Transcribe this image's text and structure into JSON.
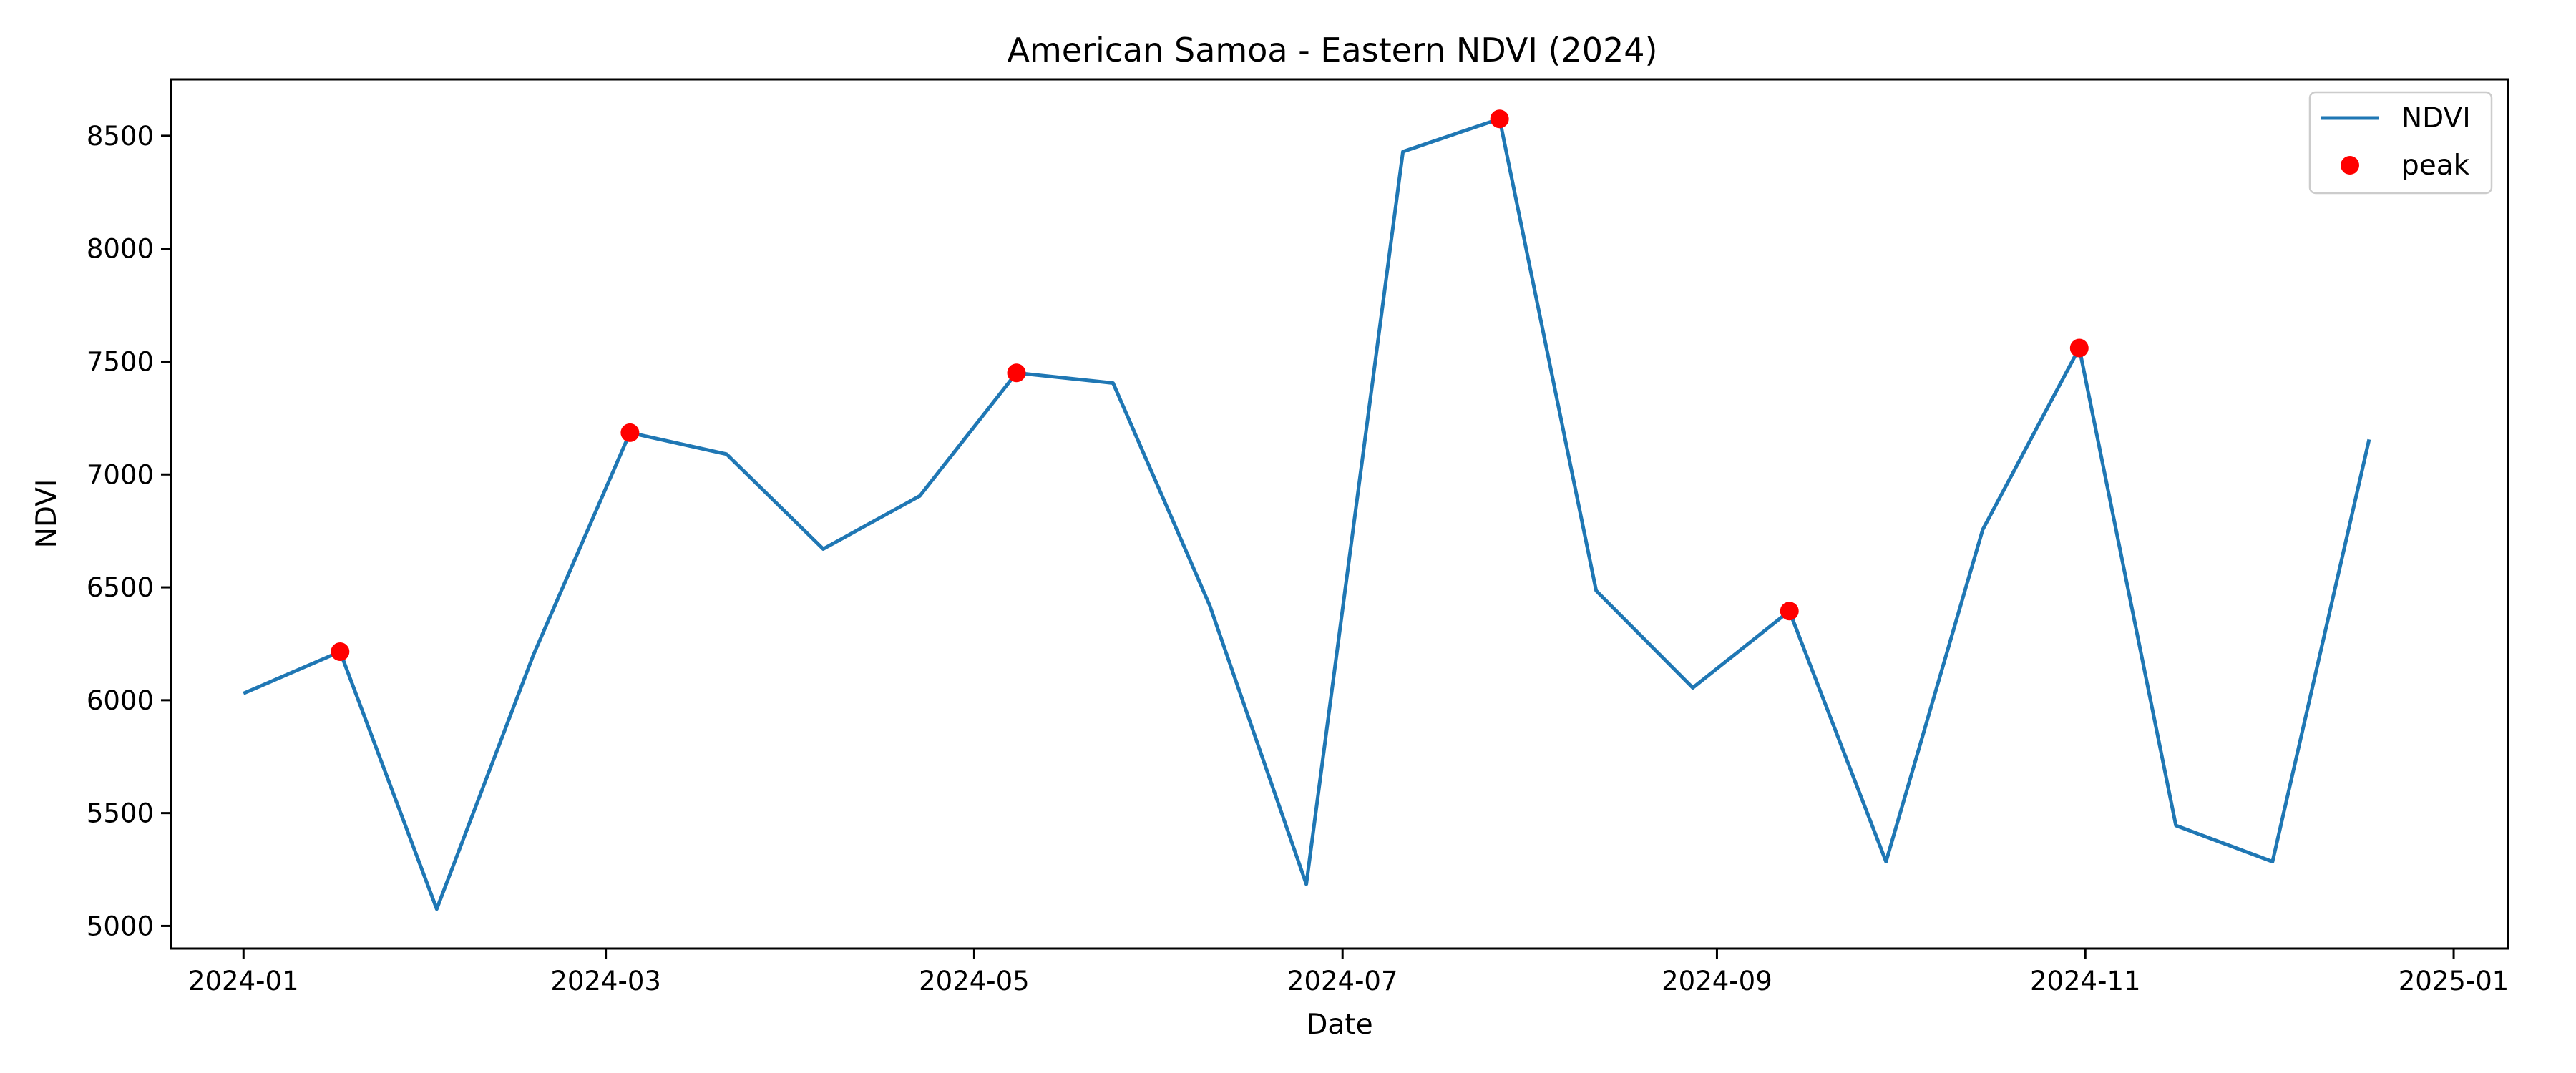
{
  "chart_data": {
    "type": "line",
    "title": "American Samoa - Eastern NDVI (2024)",
    "xlabel": "Date",
    "ylabel": "NDVI",
    "ylim": [
      4900,
      8750
    ],
    "xlim": [
      "2023-12-20",
      "2025-01-10"
    ],
    "grid": false,
    "legend_position": "top-right",
    "x_ticks": [
      "2024-01-01",
      "2024-03-01",
      "2024-05-01",
      "2024-07-01",
      "2024-09-01",
      "2024-11-01",
      "2025-01-01"
    ],
    "x_tick_labels": [
      "2024-01",
      "2024-03",
      "2024-05",
      "2024-07",
      "2024-09",
      "2024-11",
      "2025-01"
    ],
    "y_ticks": [
      5000,
      5500,
      6000,
      6500,
      7000,
      7500,
      8000,
      8500
    ],
    "y_tick_labels": [
      "5000",
      "5500",
      "6000",
      "6500",
      "7000",
      "7500",
      "8000",
      "8500"
    ],
    "series": [
      {
        "name": "NDVI",
        "color": "#1f77b4",
        "x": [
          "2024-01-01",
          "2024-01-17",
          "2024-02-02",
          "2024-02-18",
          "2024-03-05",
          "2024-03-21",
          "2024-04-06",
          "2024-04-22",
          "2024-05-08",
          "2024-05-24",
          "2024-06-09",
          "2024-06-25",
          "2024-07-11",
          "2024-07-27",
          "2024-08-12",
          "2024-08-28",
          "2024-09-13",
          "2024-09-29",
          "2024-10-15",
          "2024-10-31",
          "2024-11-16",
          "2024-12-02",
          "2024-12-18"
        ],
        "y": [
          6030,
          6215,
          5075,
          6200,
          7185,
          7090,
          6670,
          6905,
          7450,
          7405,
          6420,
          5185,
          8430,
          8575,
          6485,
          6055,
          6395,
          5285,
          6755,
          7560,
          5445,
          5285,
          7155
        ]
      },
      {
        "name": "peak",
        "color": "#ff0000",
        "x": [
          "2024-01-17",
          "2024-03-05",
          "2024-05-08",
          "2024-07-27",
          "2024-09-13",
          "2024-10-31"
        ],
        "y": [
          6215,
          7185,
          7450,
          8575,
          6395,
          7560
        ]
      }
    ]
  }
}
